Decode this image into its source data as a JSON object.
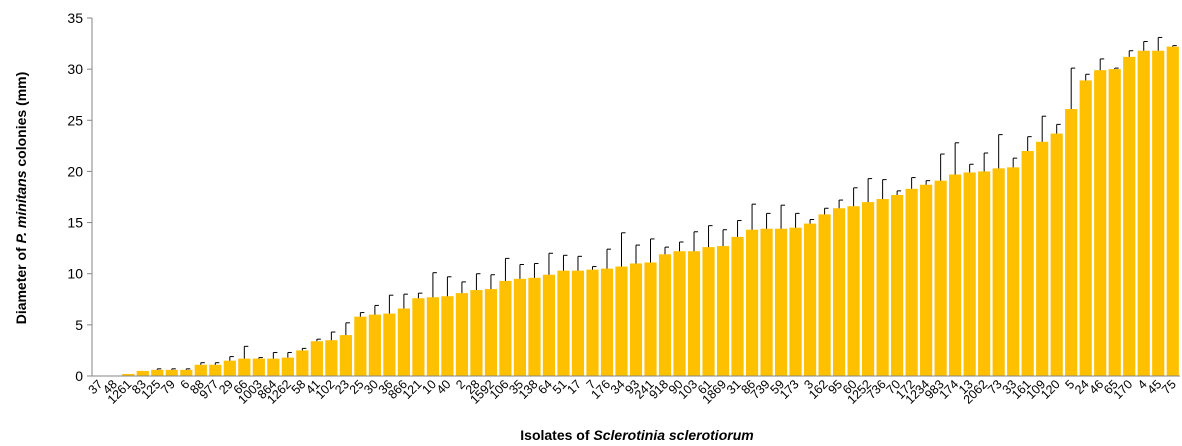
{
  "chart_data": {
    "type": "bar",
    "title": "",
    "ylabel": {
      "prefix": "Diameter of ",
      "italic": "P. minitans",
      "suffix": " colonies (mm)"
    },
    "xlabel": {
      "prefix": "Isolates of ",
      "italic": "Sclerotinia sclerotiorum",
      "suffix": ""
    },
    "ylim": [
      0,
      35
    ],
    "yticks": [
      0,
      5,
      10,
      15,
      20,
      25,
      30,
      35
    ],
    "grid": false,
    "legend": "none",
    "bar_color": "#FFC000",
    "categories": [
      "37",
      "48",
      "1261",
      "83",
      "125",
      "79",
      "6",
      "88",
      "977",
      "29",
      "66",
      "1003",
      "864",
      "1262",
      "58",
      "41",
      "102",
      "23",
      "25",
      "30",
      "36",
      "866",
      "121",
      "10",
      "40",
      "2",
      "28",
      "1592",
      "106",
      "35",
      "138",
      "64",
      "51",
      "17",
      "7",
      "176",
      "34",
      "93",
      "241",
      "918",
      "90",
      "103",
      "61",
      "1869",
      "31",
      "86",
      "739",
      "59",
      "173",
      "3",
      "162",
      "95",
      "60",
      "1252",
      "736",
      "70",
      "172",
      "1234",
      "983",
      "174",
      "13",
      "2062",
      "73",
      "33",
      "161",
      "109",
      "120",
      "5",
      "24",
      "46",
      "65",
      "170",
      "4",
      "45",
      "75"
    ],
    "values": [
      0,
      0,
      0.2,
      0.5,
      0.6,
      0.6,
      0.6,
      1.1,
      1.1,
      1.5,
      1.7,
      1.7,
      1.7,
      1.8,
      2.5,
      3.4,
      3.5,
      4,
      5.8,
      6,
      6.1,
      6.6,
      7.6,
      7.7,
      7.8,
      8.1,
      8.4,
      8.5,
      9.3,
      9.5,
      9.6,
      9.9,
      10.3,
      10.3,
      10.4,
      10.5,
      10.7,
      11,
      11.1,
      11.9,
      12.2,
      12.2,
      12.6,
      12.7,
      13.6,
      14.3,
      14.4,
      14.4,
      14.5,
      14.9,
      15.8,
      16.4,
      16.6,
      17,
      17.3,
      17.7,
      18.3,
      18.7,
      19.1,
      19.7,
      19.9,
      20,
      20.3,
      20.4,
      22,
      22.9,
      23.7,
      26.1,
      28.9,
      29.9,
      30,
      31.2,
      31.8,
      31.8,
      32.2
    ],
    "errors": [
      0,
      0,
      0,
      0,
      0.1,
      0.1,
      0.1,
      0.2,
      0.2,
      0.4,
      1.2,
      0.1,
      0.6,
      0.5,
      0.2,
      0.2,
      0.8,
      1.2,
      0.4,
      0.9,
      1.8,
      1.4,
      0.5,
      2.4,
      1.9,
      1.1,
      1.6,
      1.4,
      2.2,
      1.4,
      1.4,
      2.1,
      1.5,
      1.4,
      0.3,
      1.9,
      3.3,
      1.8,
      2.3,
      0.7,
      0.9,
      1.9,
      2.1,
      1.6,
      1.6,
      2.5,
      1.5,
      2.3,
      1.4,
      0.4,
      0.6,
      0.8,
      1.8,
      2.3,
      1.9,
      0.4,
      1.1,
      0.4,
      2.6,
      3.1,
      0.8,
      1.8,
      3.3,
      0.9,
      1.4,
      2.5,
      0.9,
      4,
      0.6,
      1.1,
      0.1,
      0.6,
      0.9,
      1.3,
      0.1
    ]
  }
}
